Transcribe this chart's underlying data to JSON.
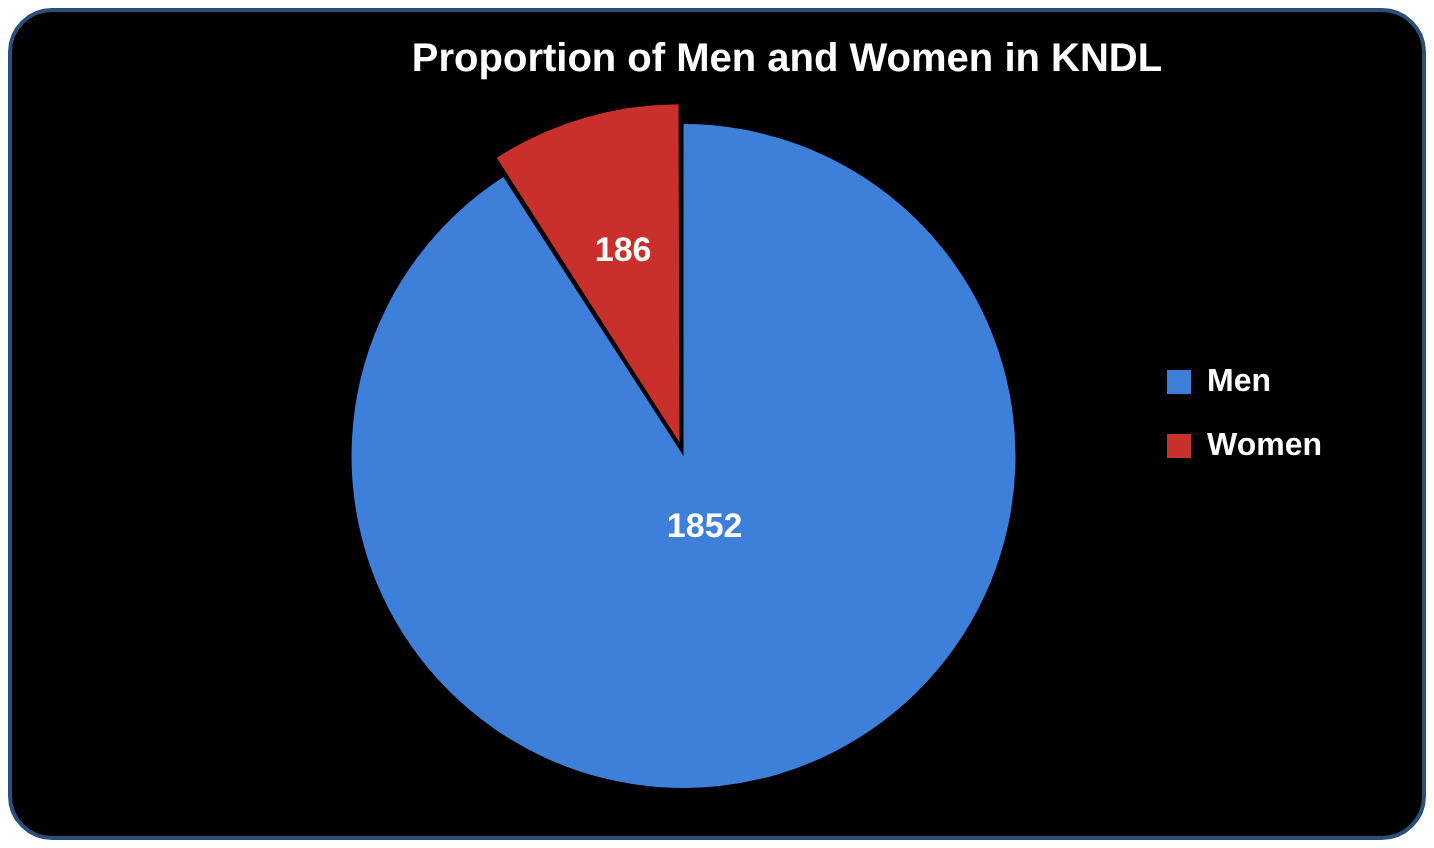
{
  "chart_data": {
    "type": "pie",
    "title": "Proportion of Men and Women in KNDL",
    "categories": [
      "Men",
      "Women"
    ],
    "values": [
      1852,
      186
    ],
    "colors": [
      "#3d7fd9",
      "#c9302c"
    ],
    "data_labels": true,
    "legend": "right"
  }
}
